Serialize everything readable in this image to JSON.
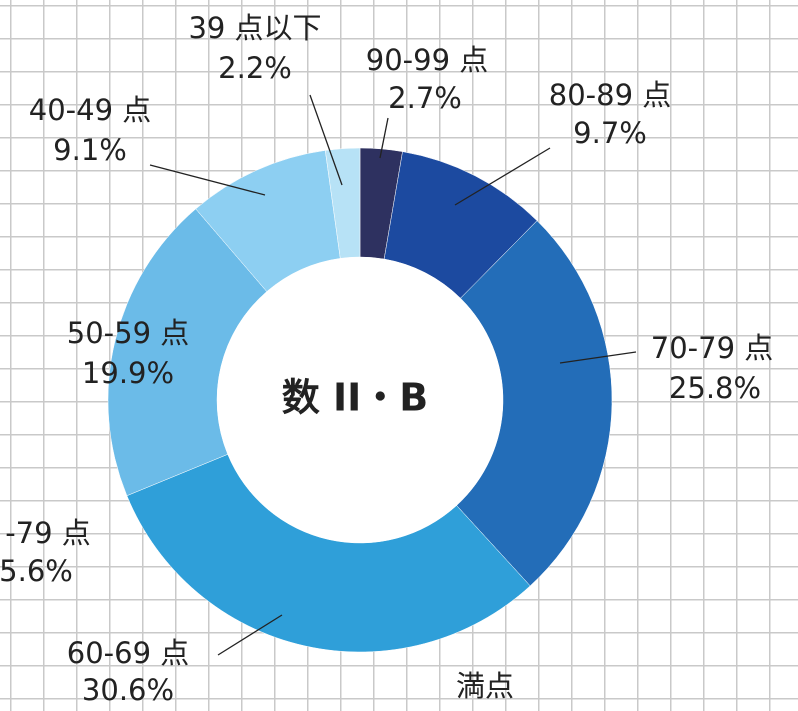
{
  "chart_data": {
    "type": "donut",
    "title": "数 II・B",
    "categories": [
      "90-99 点",
      "80-89 点",
      "70-79 点",
      "60-69 点",
      "50-59 点",
      "40-49 点",
      "39 点以下"
    ],
    "values": [
      2.7,
      9.7,
      25.8,
      30.6,
      19.9,
      9.1,
      2.2
    ],
    "value_labels": [
      "2.7%",
      "9.7%",
      "25.8%",
      "30.6%",
      "19.9%",
      "9.1%",
      "2.2%"
    ],
    "colors": [
      "#2e3160",
      "#1c4aa0",
      "#236db8",
      "#2f9fd9",
      "#6bbbe8",
      "#8dcff2",
      "#b7e2f6"
    ],
    "annotations": [
      "満点",
      "-79 点",
      "5.6%"
    ]
  }
}
